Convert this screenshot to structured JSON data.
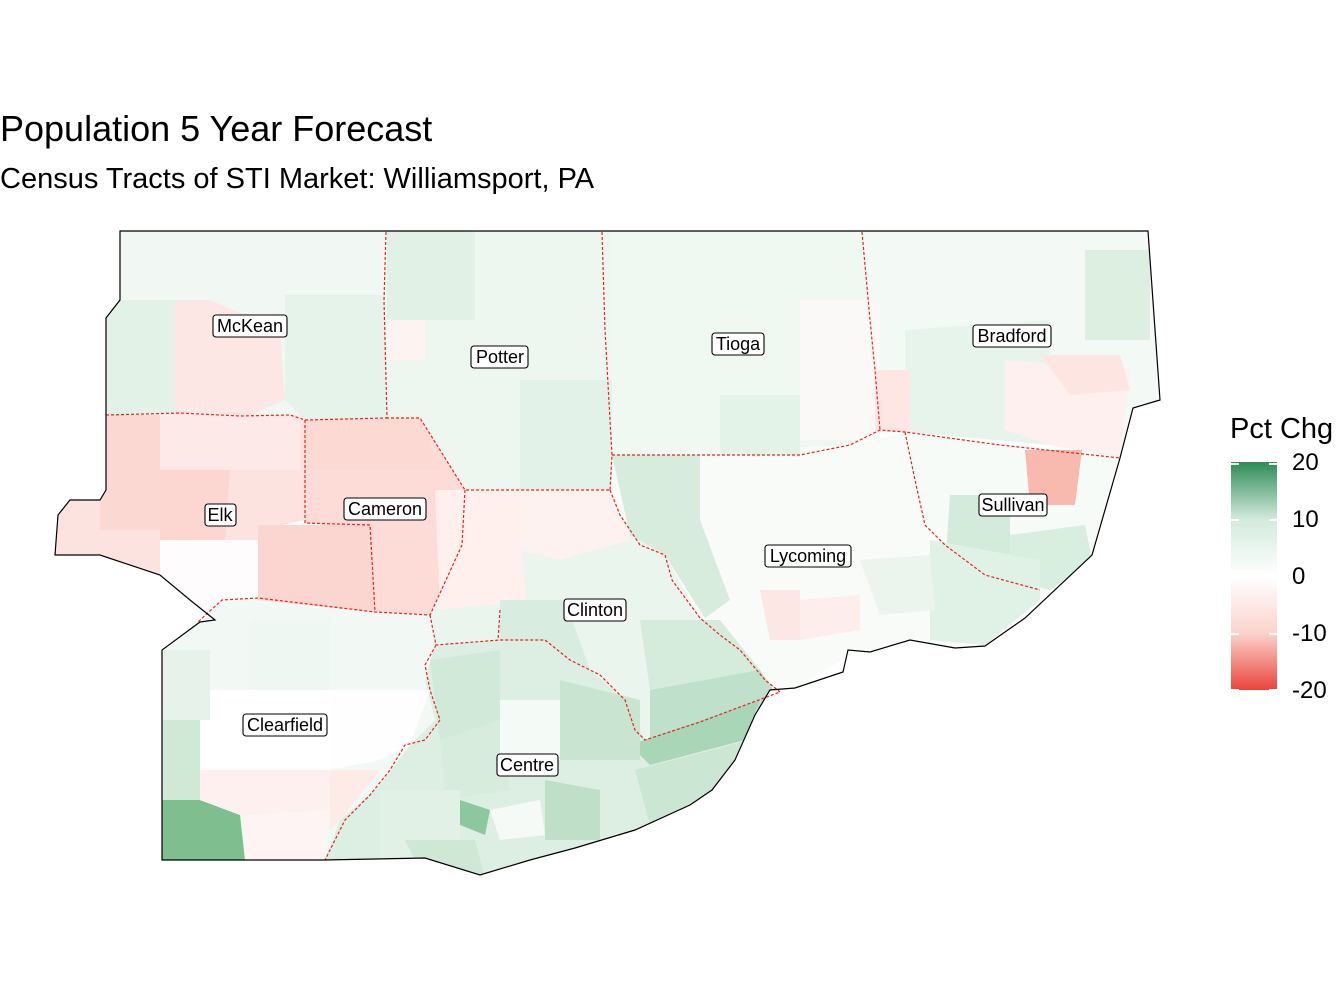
{
  "title": "Population 5 Year Forecast",
  "subtitle": "Census Tracts of STI Market: Williamsport, PA",
  "legend": {
    "title": "Pct Chg",
    "ticks": [
      "20",
      "10",
      "0",
      "-10",
      "-20"
    ],
    "colors": {
      "high": "#2e8b57",
      "mid": "#ffffff",
      "low": "#e8453c"
    }
  },
  "county_border_color": "#e8231d",
  "counties": [
    {
      "name": "McKean",
      "label": "McKean",
      "pct_chg": 2
    },
    {
      "name": "Potter",
      "label": "Potter",
      "pct_chg": 4
    },
    {
      "name": "Tioga",
      "label": "Tioga",
      "pct_chg": 3
    },
    {
      "name": "Bradford",
      "label": "Bradford",
      "pct_chg": 2
    },
    {
      "name": "Elk",
      "label": "Elk",
      "pct_chg": -6
    },
    {
      "name": "Cameron",
      "label": "Cameron",
      "pct_chg": -9
    },
    {
      "name": "Clinton",
      "label": "Clinton",
      "pct_chg": 2
    },
    {
      "name": "Lycoming",
      "label": "Lycoming",
      "pct_chg": 0
    },
    {
      "name": "Sullivan",
      "label": "Sullivan",
      "pct_chg": 3
    },
    {
      "name": "Clearfield",
      "label": "Clearfield",
      "pct_chg": 3
    },
    {
      "name": "Centre",
      "label": "Centre",
      "pct_chg": 6
    }
  ]
}
